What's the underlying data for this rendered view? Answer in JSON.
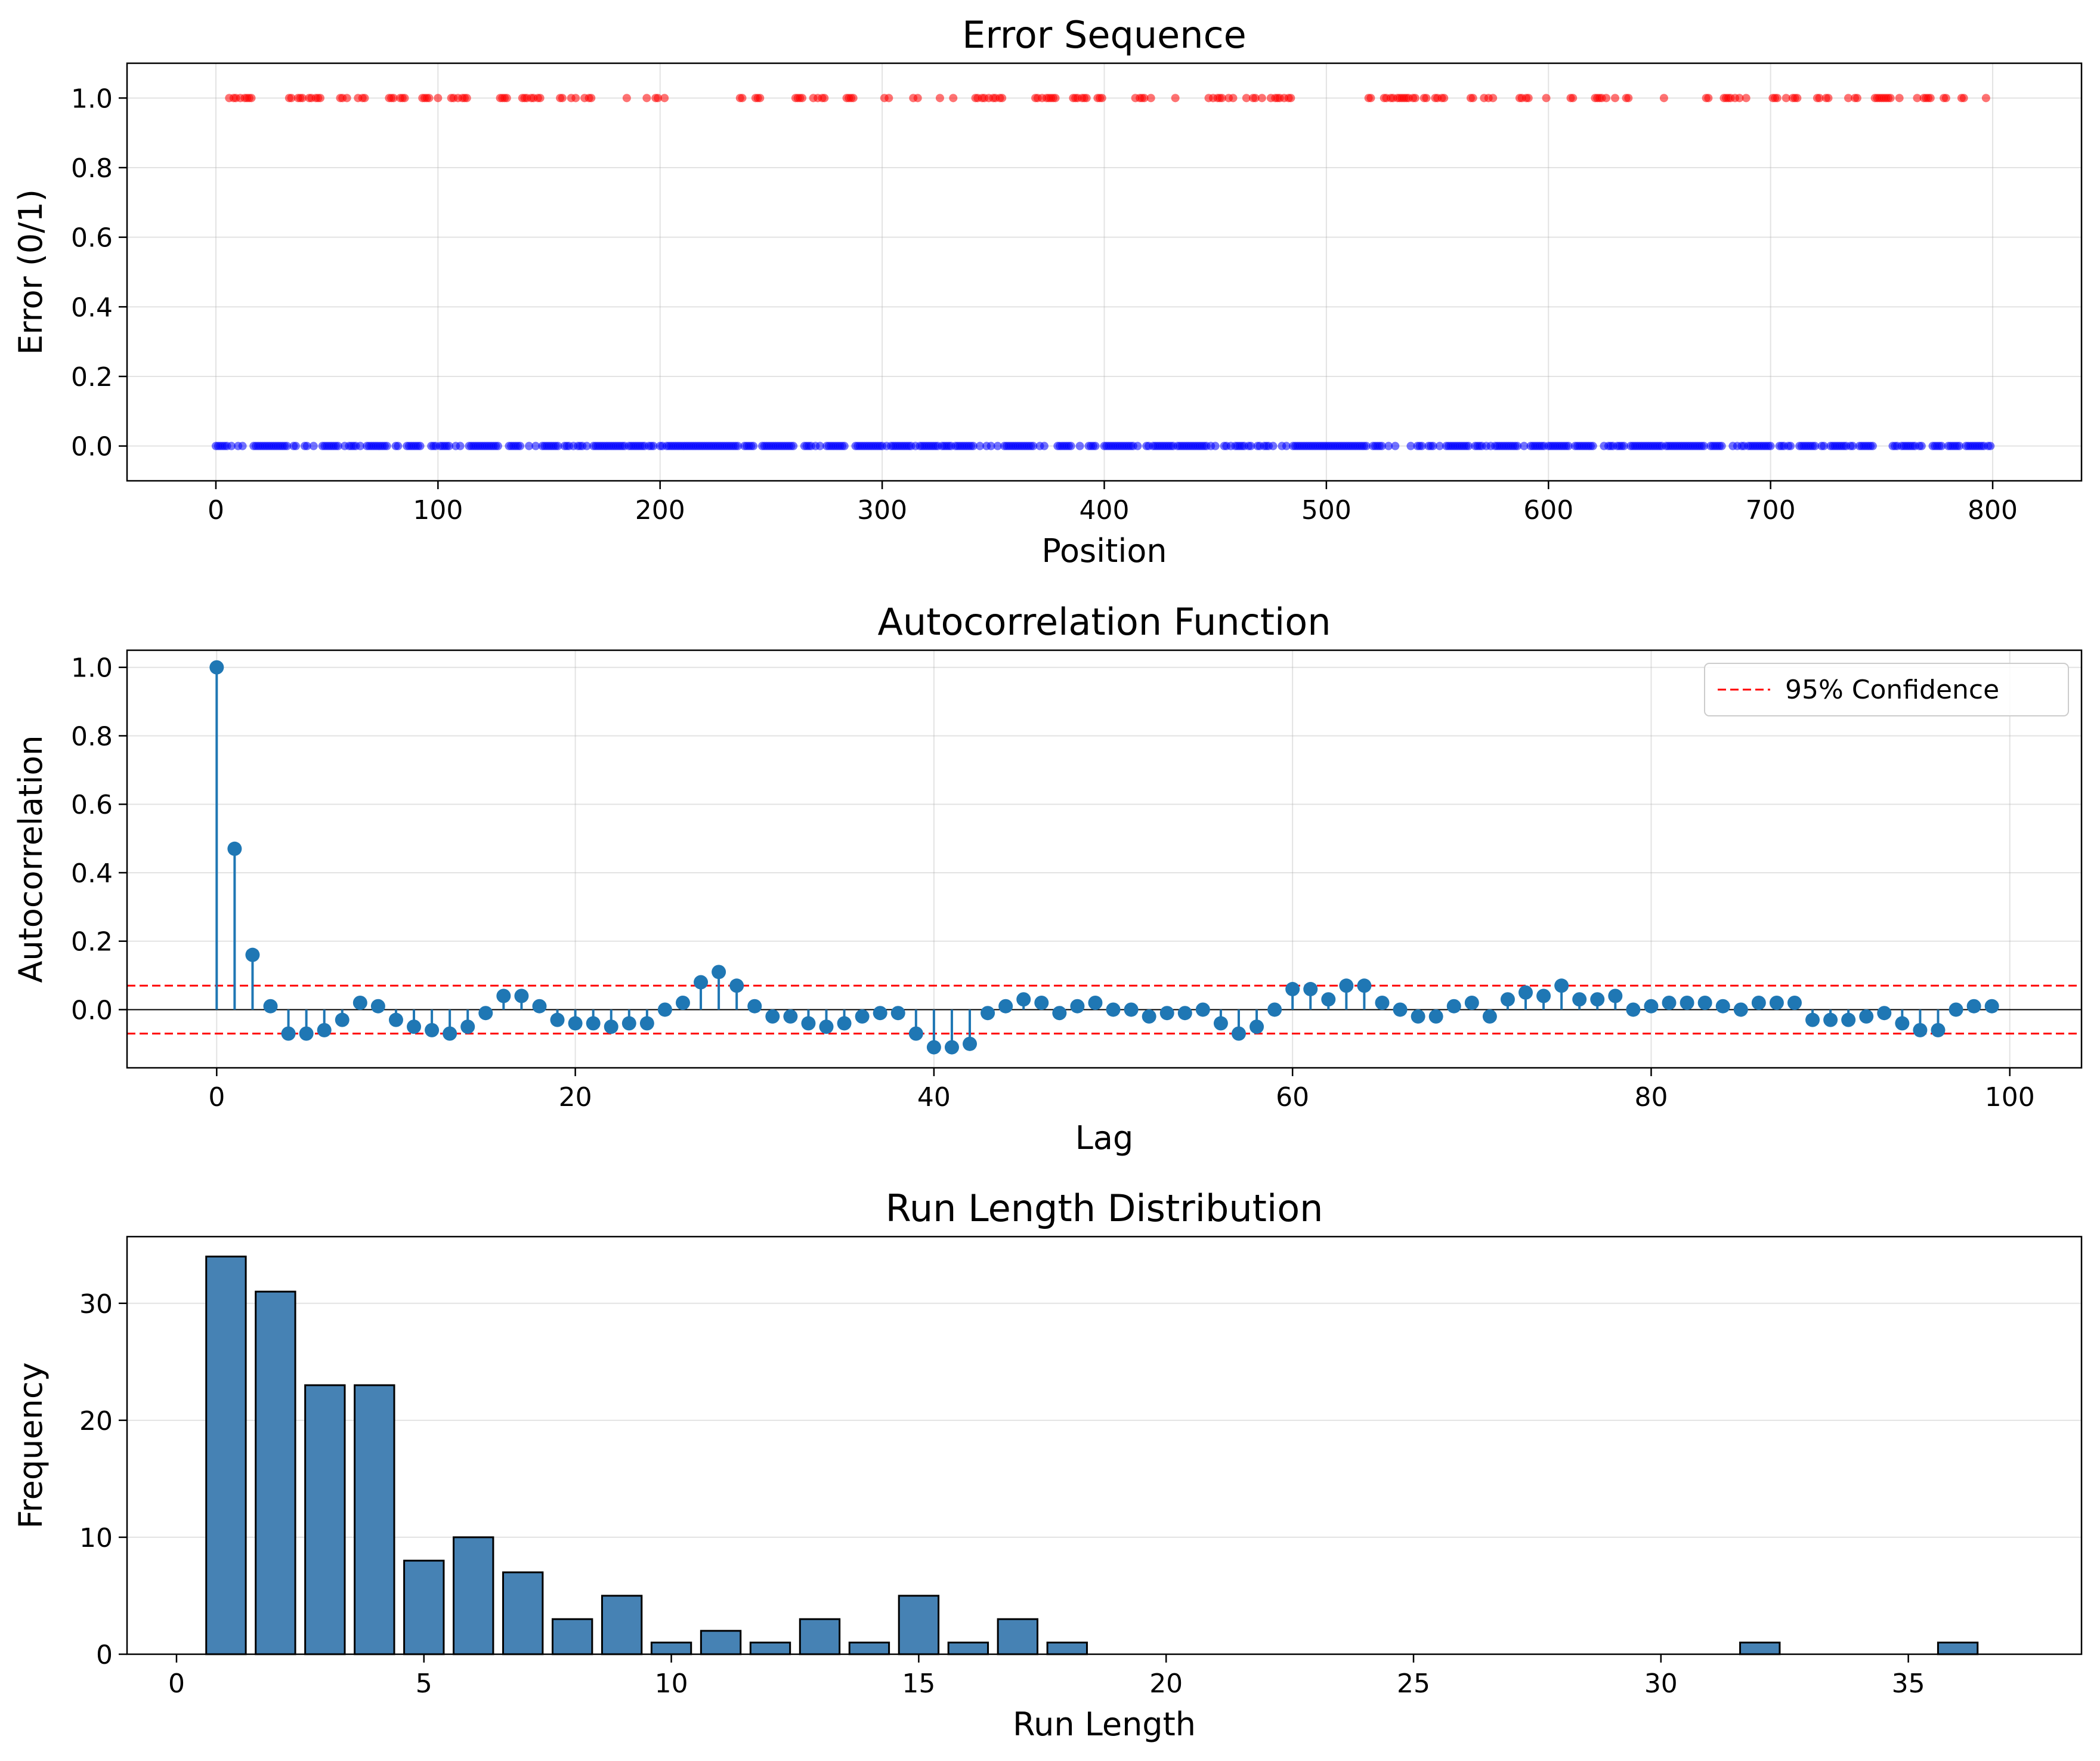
{
  "chart_data": [
    {
      "type": "scatter",
      "title": "Error Sequence",
      "xlabel": "Position",
      "ylabel": "Error (0/1)",
      "xlim": [
        -40,
        840
      ],
      "ylim": [
        -0.1,
        1.1
      ],
      "xticks": [
        "0",
        "100",
        "200",
        "300",
        "400",
        "500",
        "600",
        "700",
        "800"
      ],
      "yticks": [
        "0.0",
        "0.2",
        "0.4",
        "0.6",
        "0.8",
        "1.0"
      ],
      "grid": true,
      "colors": {
        "error": "#ff0000",
        "correct": "#0000ff"
      },
      "error_positions": [
        6,
        8,
        9,
        11,
        13,
        14,
        15,
        16,
        33,
        34,
        37,
        38,
        39,
        42,
        43,
        45,
        46,
        47,
        56,
        57,
        59,
        64,
        66,
        67,
        78,
        79,
        80,
        83,
        84,
        85,
        93,
        94,
        95,
        96,
        100,
        106,
        107,
        109,
        111,
        112,
        113,
        128,
        129,
        130,
        131,
        138,
        139,
        140,
        142,
        143,
        145,
        146,
        155,
        156,
        160,
        162,
        166,
        168,
        169,
        185,
        194,
        198,
        199,
        202,
        236,
        237,
        243,
        244,
        245,
        261,
        262,
        263,
        264,
        269,
        271,
        273,
        274,
        284,
        285,
        286,
        287,
        301,
        303,
        314,
        316,
        326,
        332,
        342,
        343,
        345,
        346,
        348,
        350,
        351,
        353,
        354,
        369,
        370,
        372,
        374,
        375,
        376,
        377,
        378,
        386,
        387,
        388,
        390,
        391,
        392,
        397,
        398,
        399,
        414,
        416,
        417,
        418,
        421,
        432,
        447,
        449,
        451,
        452,
        453,
        456,
        458,
        464,
        467,
        468,
        471,
        475,
        477,
        478,
        479,
        481,
        483,
        484,
        519,
        520,
        526,
        527,
        529,
        530,
        532,
        533,
        534,
        535,
        536,
        537,
        539,
        540,
        544,
        545,
        549,
        550,
        552,
        553,
        565,
        566,
        571,
        573,
        575,
        587,
        588,
        590,
        591,
        599,
        610,
        611,
        621,
        622,
        623,
        624,
        626,
        630,
        635,
        636,
        652,
        671,
        672,
        679,
        680,
        681,
        682,
        684,
        686,
        689,
        701,
        702,
        703,
        707,
        710,
        711,
        712,
        721,
        722,
        725,
        726,
        735,
        738,
        739,
        747,
        748,
        749,
        750,
        751,
        752,
        753,
        754,
        758,
        766,
        769,
        770,
        771,
        772,
        778,
        779,
        786,
        787,
        797
      ],
      "sequence_length": 800
    },
    {
      "type": "stem",
      "title": "Autocorrelation Function",
      "xlabel": "Lag",
      "ylabel": "Autocorrelation",
      "xlim": [
        -5,
        104
      ],
      "ylim": [
        -0.17,
        1.05
      ],
      "xticks": [
        "0",
        "20",
        "40",
        "60",
        "80",
        "100"
      ],
      "yticks": [
        "0.0",
        "0.2",
        "0.4",
        "0.6",
        "0.8",
        "1.0"
      ],
      "grid": true,
      "confidence_bound": 0.07,
      "legend": {
        "label": "95% Confidence",
        "position": "top-right"
      },
      "colors": {
        "stem": "#1f77b4",
        "confidence": "#ff0000",
        "zero": "#000000"
      },
      "values": [
        1.0,
        0.47,
        0.16,
        0.01,
        -0.07,
        -0.07,
        -0.06,
        -0.03,
        0.02,
        0.01,
        -0.03,
        -0.05,
        -0.06,
        -0.07,
        -0.05,
        -0.01,
        0.04,
        0.04,
        0.01,
        -0.03,
        -0.04,
        -0.04,
        -0.05,
        -0.04,
        -0.04,
        0.0,
        0.02,
        0.08,
        0.11,
        0.07,
        0.01,
        -0.02,
        -0.02,
        -0.04,
        -0.05,
        -0.04,
        -0.02,
        -0.01,
        -0.01,
        -0.07,
        -0.11,
        -0.11,
        -0.1,
        -0.01,
        0.01,
        0.03,
        0.02,
        -0.01,
        0.01,
        0.02,
        0.0,
        0.0,
        -0.02,
        -0.01,
        -0.01,
        0.0,
        -0.04,
        -0.07,
        -0.05,
        0.0,
        0.06,
        0.06,
        0.03,
        0.07,
        0.07,
        0.02,
        0.0,
        -0.02,
        -0.02,
        0.01,
        0.02,
        -0.02,
        0.03,
        0.05,
        0.04,
        0.07,
        0.03,
        0.03,
        0.04,
        0.0,
        0.01,
        0.02,
        0.02,
        0.02,
        0.01,
        0.0,
        0.02,
        0.02,
        0.02,
        -0.03,
        -0.03,
        -0.03,
        -0.02,
        -0.01,
        -0.04,
        -0.06,
        -0.06,
        0.0,
        0.01,
        0.01
      ]
    },
    {
      "type": "bar",
      "title": "Run Length Distribution",
      "xlabel": "Run Length",
      "ylabel": "Frequency",
      "xlim": [
        -1,
        38.5
      ],
      "ylim": [
        0,
        35.7
      ],
      "xticks": [
        "0",
        "5",
        "10",
        "15",
        "20",
        "25",
        "30",
        "35"
      ],
      "yticks": [
        "0",
        "10",
        "20",
        "30"
      ],
      "grid": true,
      "colors": {
        "bar": "#4682b4",
        "edge": "#000000"
      },
      "x": [
        1,
        2,
        3,
        4,
        5,
        6,
        7,
        8,
        9,
        10,
        11,
        12,
        13,
        14,
        15,
        16,
        17,
        18,
        32,
        36
      ],
      "values": [
        34,
        31,
        23,
        23,
        8,
        10,
        7,
        3,
        5,
        1,
        2,
        1,
        3,
        1,
        5,
        1,
        3,
        1,
        1,
        1
      ]
    }
  ]
}
